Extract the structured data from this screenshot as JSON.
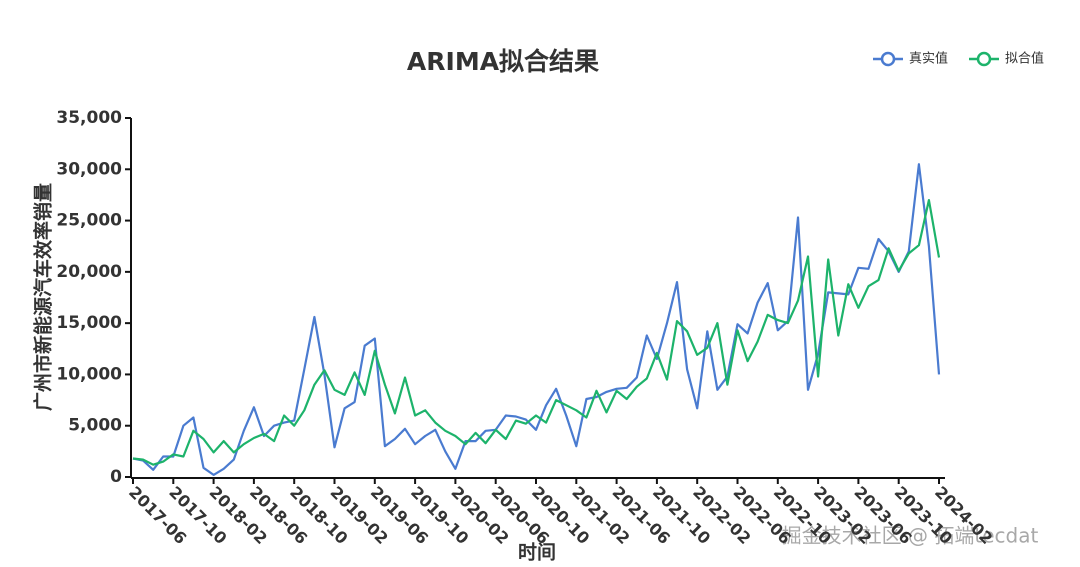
{
  "chart_data": {
    "type": "line",
    "title": "ARIMA拟合结果",
    "x_label": "时间",
    "y_label": "广州市新能源汽车效率销量",
    "watermark": "掘金技术社区 @ 拓端tecdat",
    "legend": "upper right",
    "categories": [
      "2017-06",
      null,
      null,
      null,
      "2017-10",
      null,
      null,
      null,
      "2018-02",
      null,
      null,
      null,
      "2018-06",
      null,
      null,
      null,
      "2018-10",
      null,
      null,
      null,
      "2019-02",
      null,
      null,
      null,
      "2019-06",
      null,
      null,
      null,
      "2019-10",
      null,
      null,
      null,
      "2020-02",
      null,
      null,
      null,
      "2020-06",
      null,
      null,
      null,
      "2020-10",
      null,
      null,
      null,
      "2021-02",
      null,
      null,
      null,
      "2021-06",
      null,
      null,
      null,
      "2021-10",
      null,
      null,
      null,
      "2022-02",
      null,
      null,
      null,
      "2022-06",
      null,
      null,
      null,
      "2022-10",
      null,
      null,
      null,
      "2023-02",
      null,
      null,
      null,
      "2023-06",
      null,
      null,
      null,
      "2023-10",
      null,
      null,
      null,
      "2024-02"
    ],
    "series": [
      {
        "name": "真实值",
        "color": "#4a7bd0",
        "values": [
          1800,
          1600,
          700,
          2000,
          2000,
          5000,
          5800,
          900,
          200,
          800,
          1700,
          4500,
          6800,
          4000,
          5000,
          5300,
          5500,
          10500,
          15600,
          10000,
          2900,
          6700,
          7300,
          12800,
          13500,
          3000,
          3700,
          4700,
          3200,
          4000,
          4600,
          2500,
          800,
          3500,
          3500,
          4500,
          4600,
          6000,
          5900,
          5600,
          4600,
          7000,
          8600,
          6000,
          3000,
          7600,
          7800,
          8300,
          8600,
          8700,
          9700,
          13800,
          11500,
          15000,
          19000,
          10500,
          6700,
          14200,
          8500,
          9800,
          14900,
          14000,
          17000,
          18900,
          14300,
          15200,
          25300,
          8500,
          12000,
          18000,
          17900,
          17800,
          20400,
          20300,
          23200,
          22000,
          20000,
          22000,
          30500,
          22500,
          10000
        ]
      },
      {
        "name": "拟合值",
        "color": "#1db36b",
        "values": [
          1800,
          1700,
          1200,
          1500,
          2200,
          2000,
          4500,
          3700,
          2400,
          3500,
          2400,
          3200,
          3800,
          4200,
          3500,
          6000,
          5000,
          6500,
          9000,
          10400,
          8500,
          8000,
          10200,
          8000,
          12300,
          9000,
          6200,
          9700,
          6000,
          6500,
          5300,
          4500,
          4000,
          3200,
          4300,
          3300,
          4600,
          3700,
          5500,
          5200,
          6000,
          5300,
          7500,
          7000,
          6500,
          5800,
          8400,
          6300,
          8400,
          7600,
          8800,
          9600,
          12100,
          9500,
          15200,
          14200,
          11900,
          12600,
          15000,
          9000,
          14300,
          11300,
          13200,
          15800,
          15300,
          15000,
          17200,
          21500,
          9800,
          21200,
          13800,
          18800,
          16500,
          18600,
          19200,
          22300,
          20100,
          21800,
          22600,
          27000,
          21400
        ]
      }
    ],
    "ylim": [
      0,
      35000
    ],
    "yticks": [
      {
        "value": 0,
        "label": "0"
      },
      {
        "value": 5000,
        "label": "5,000"
      },
      {
        "value": 10000,
        "label": "10,000"
      },
      {
        "value": 15000,
        "label": "15,000"
      },
      {
        "value": 20000,
        "label": "20,000"
      },
      {
        "value": 25000,
        "label": "25,000"
      },
      {
        "value": 30000,
        "label": "30,000"
      },
      {
        "value": 35000,
        "label": "35,000"
      }
    ]
  }
}
